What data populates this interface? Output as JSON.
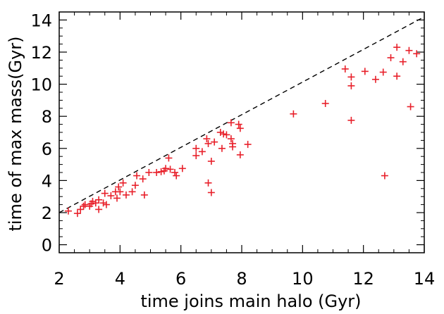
{
  "chart_data": {
    "type": "scatter",
    "title": "",
    "xlabel": "time joins main halo (Gyr)",
    "ylabel": "time of max mass(Gyr)",
    "xlim": [
      2,
      14
    ],
    "ylim": [
      -0.5,
      14.5
    ],
    "xticks": [
      2,
      4,
      6,
      8,
      10,
      12,
      14
    ],
    "yticks": [
      0,
      2,
      4,
      6,
      8,
      10,
      12,
      14
    ],
    "reference_line": {
      "style": "dashed",
      "from": [
        2,
        2
      ],
      "to": [
        14,
        14.2
      ]
    },
    "marker": {
      "shape": "plus",
      "color": "#e8202a"
    },
    "points": [
      [
        2.3,
        2.1
      ],
      [
        2.6,
        1.95
      ],
      [
        2.7,
        2.2
      ],
      [
        2.8,
        2.4
      ],
      [
        2.85,
        2.5
      ],
      [
        3.0,
        2.4
      ],
      [
        3.05,
        2.55
      ],
      [
        3.1,
        2.7
      ],
      [
        3.2,
        2.6
      ],
      [
        3.3,
        2.8
      ],
      [
        3.3,
        2.2
      ],
      [
        3.45,
        2.6
      ],
      [
        3.5,
        3.2
      ],
      [
        3.55,
        2.5
      ],
      [
        3.7,
        3.05
      ],
      [
        3.85,
        3.3
      ],
      [
        3.9,
        2.9
      ],
      [
        3.95,
        3.6
      ],
      [
        4.0,
        3.3
      ],
      [
        4.1,
        3.85
      ],
      [
        4.2,
        3.1
      ],
      [
        4.4,
        3.3
      ],
      [
        4.55,
        4.3
      ],
      [
        4.5,
        3.7
      ],
      [
        4.75,
        4.1
      ],
      [
        4.8,
        3.1
      ],
      [
        4.95,
        4.5
      ],
      [
        5.2,
        4.5
      ],
      [
        5.35,
        4.55
      ],
      [
        5.45,
        4.6
      ],
      [
        5.5,
        4.75
      ],
      [
        5.6,
        5.4
      ],
      [
        5.65,
        4.7
      ],
      [
        5.8,
        4.5
      ],
      [
        5.85,
        4.3
      ],
      [
        6.05,
        4.75
      ],
      [
        6.5,
        6.0
      ],
      [
        6.5,
        5.55
      ],
      [
        6.7,
        5.8
      ],
      [
        6.85,
        6.6
      ],
      [
        6.9,
        6.3
      ],
      [
        6.9,
        3.85
      ],
      [
        7.0,
        5.2
      ],
      [
        7.0,
        3.25
      ],
      [
        7.1,
        6.4
      ],
      [
        7.3,
        7.0
      ],
      [
        7.35,
        6.0
      ],
      [
        7.4,
        6.9
      ],
      [
        7.5,
        6.85
      ],
      [
        7.65,
        7.6
      ],
      [
        7.65,
        6.6
      ],
      [
        7.7,
        6.1
      ],
      [
        7.7,
        6.3
      ],
      [
        7.9,
        7.5
      ],
      [
        7.95,
        7.25
      ],
      [
        7.95,
        5.6
      ],
      [
        8.2,
        6.25
      ],
      [
        9.7,
        8.15
      ],
      [
        10.75,
        8.8
      ],
      [
        11.4,
        10.95
      ],
      [
        11.6,
        10.45
      ],
      [
        11.6,
        9.9
      ],
      [
        11.6,
        7.75
      ],
      [
        12.05,
        10.8
      ],
      [
        12.4,
        10.3
      ],
      [
        12.65,
        10.75
      ],
      [
        12.7,
        4.3
      ],
      [
        12.9,
        11.65
      ],
      [
        13.1,
        12.3
      ],
      [
        13.1,
        10.5
      ],
      [
        13.3,
        11.4
      ],
      [
        13.5,
        12.1
      ],
      [
        13.55,
        8.6
      ],
      [
        13.75,
        11.9
      ]
    ]
  }
}
